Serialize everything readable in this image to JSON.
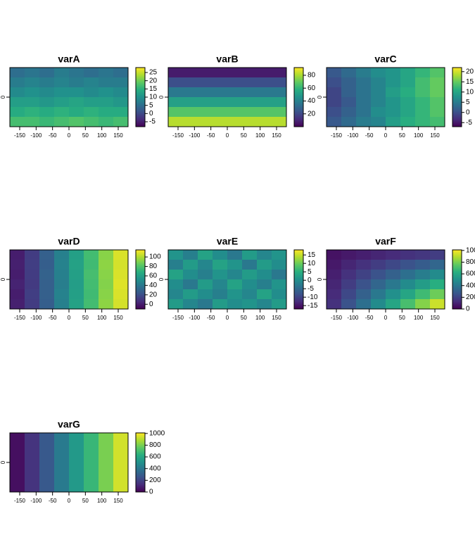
{
  "chart_data": [
    {
      "type": "heatmap",
      "title": "varA",
      "colormap": "viridis",
      "xlim": [
        -180,
        180
      ],
      "ylim": [
        -90,
        90
      ],
      "xticks": [
        -150,
        -100,
        -50,
        0,
        50,
        100,
        150
      ],
      "yticks": [
        0
      ],
      "zlim": [
        -8,
        28
      ],
      "zticks": [
        -5,
        0,
        5,
        10,
        15,
        20,
        25
      ],
      "z": [
        [
          5,
          6,
          5,
          7,
          6,
          5,
          6,
          5
        ],
        [
          7,
          8,
          7,
          8,
          7,
          8,
          7,
          7
        ],
        [
          9,
          10,
          9,
          10,
          10,
          9,
          10,
          9
        ],
        [
          12,
          12,
          11,
          12,
          13,
          12,
          12,
          11
        ],
        [
          14,
          15,
          14,
          15,
          14,
          15,
          14,
          14
        ],
        [
          17,
          17,
          16,
          17,
          18,
          17,
          16,
          17
        ]
      ]
    },
    {
      "type": "heatmap",
      "title": "varB",
      "colormap": "viridis",
      "xlim": [
        -180,
        180
      ],
      "ylim": [
        -90,
        90
      ],
      "xticks": [
        -150,
        -100,
        -50,
        0,
        50,
        100,
        150
      ],
      "yticks": [
        0
      ],
      "zlim": [
        0,
        92
      ],
      "zticks": [
        20,
        40,
        60,
        80
      ],
      "z": [
        [
          7,
          7,
          7,
          7,
          7,
          7,
          7,
          7
        ],
        [
          22,
          22,
          22,
          22,
          22,
          22,
          22,
          22
        ],
        [
          37,
          37,
          37,
          37,
          37,
          37,
          37,
          37
        ],
        [
          52,
          52,
          52,
          52,
          52,
          52,
          52,
          52
        ],
        [
          67,
          67,
          67,
          67,
          67,
          67,
          67,
          67
        ],
        [
          82,
          82,
          82,
          82,
          82,
          82,
          82,
          82
        ]
      ]
    },
    {
      "type": "heatmap",
      "title": "varC",
      "colormap": "viridis",
      "xlim": [
        -180,
        180
      ],
      "ylim": [
        -90,
        90
      ],
      "xticks": [
        -150,
        -100,
        -50,
        0,
        50,
        100,
        150
      ],
      "yticks": [
        0
      ],
      "zlim": [
        -7,
        22
      ],
      "zticks": [
        -5,
        0,
        5,
        10,
        15,
        20
      ],
      "z": [
        [
          1,
          3,
          5,
          7,
          8,
          10,
          12,
          14
        ],
        [
          0,
          2,
          4,
          6,
          8,
          10,
          13,
          15
        ],
        [
          -1,
          2,
          4,
          6,
          9,
          11,
          13,
          15
        ],
        [
          -1,
          1,
          4,
          6,
          8,
          10,
          12,
          14
        ],
        [
          0,
          2,
          4,
          7,
          8,
          10,
          12,
          14
        ],
        [
          1,
          3,
          5,
          6,
          9,
          11,
          12,
          13
        ]
      ]
    },
    {
      "type": "heatmap",
      "title": "varD",
      "colormap": "viridis",
      "xlim": [
        -180,
        180
      ],
      "ylim": [
        -90,
        90
      ],
      "xticks": [
        -150,
        -100,
        -50,
        0,
        50,
        100,
        150
      ],
      "yticks": [
        0
      ],
      "zlim": [
        -10,
        115
      ],
      "zticks": [
        0,
        20,
        40,
        60,
        80,
        100
      ],
      "z": [
        [
          0,
          12,
          28,
          44,
          60,
          76,
          92,
          108
        ],
        [
          1,
          13,
          27,
          45,
          61,
          75,
          93,
          107
        ],
        [
          0,
          12,
          29,
          44,
          60,
          77,
          92,
          108
        ],
        [
          2,
          11,
          28,
          43,
          59,
          76,
          91,
          109
        ],
        [
          0,
          13,
          28,
          45,
          60,
          75,
          92,
          108
        ],
        [
          1,
          12,
          27,
          44,
          61,
          76,
          93,
          107
        ]
      ]
    },
    {
      "type": "heatmap",
      "title": "varE",
      "colormap": "viridis",
      "xlim": [
        -180,
        180
      ],
      "ylim": [
        -90,
        90
      ],
      "xticks": [
        -150,
        -100,
        -50,
        0,
        50,
        100,
        150
      ],
      "yticks": [
        0
      ],
      "zlim": [
        -17,
        18
      ],
      "zticks": [
        -15,
        -10,
        -5,
        0,
        5,
        10,
        15
      ],
      "z": [
        [
          1,
          -2,
          3,
          0,
          -3,
          2,
          -1,
          1
        ],
        [
          -2,
          2,
          -1,
          3,
          1,
          -3,
          2,
          0
        ],
        [
          3,
          0,
          -2,
          1,
          -1,
          2,
          0,
          -3
        ],
        [
          0,
          -3,
          2,
          -1,
          3,
          0,
          -2,
          1
        ],
        [
          -1,
          2,
          0,
          -2,
          1,
          -1,
          3,
          0
        ],
        [
          2,
          -1,
          -3,
          2,
          0,
          1,
          -1,
          2
        ]
      ]
    },
    {
      "type": "heatmap",
      "title": "varF",
      "colormap": "viridis",
      "xlim": [
        -180,
        180
      ],
      "ylim": [
        -90,
        90
      ],
      "xticks": [
        -150,
        -100,
        -50,
        0,
        50,
        100,
        150
      ],
      "yticks": [
        0
      ],
      "zlim": [
        0,
        1010
      ],
      "zticks": [
        0,
        200,
        400,
        600,
        800,
        1000
      ],
      "z": [
        [
          49,
          68,
          86,
          105,
          124,
          143,
          161,
          180
        ],
        [
          68,
          105,
          143,
          180,
          218,
          255,
          293,
          330
        ],
        [
          86,
          143,
          199,
          255,
          311,
          368,
          424,
          480
        ],
        [
          105,
          180,
          255,
          330,
          405,
          480,
          555,
          630
        ],
        [
          124,
          218,
          311,
          405,
          499,
          593,
          686,
          780
        ],
        [
          143,
          255,
          368,
          480,
          593,
          705,
          818,
          930
        ]
      ]
    },
    {
      "type": "heatmap",
      "title": "varG",
      "colormap": "viridis",
      "xlim": [
        -180,
        180
      ],
      "ylim": [
        -90,
        90
      ],
      "xticks": [
        -150,
        -100,
        -50,
        0,
        50,
        100,
        150
      ],
      "yticks": [
        0
      ],
      "zlim": [
        0,
        1010
      ],
      "zticks": [
        0,
        200,
        400,
        600,
        800,
        1000
      ],
      "z": [
        [
          40,
          150,
          280,
          410,
          540,
          670,
          800,
          940
        ],
        [
          40,
          150,
          280,
          410,
          540,
          670,
          800,
          940
        ],
        [
          40,
          150,
          280,
          410,
          540,
          670,
          800,
          940
        ],
        [
          40,
          150,
          280,
          410,
          540,
          670,
          800,
          940
        ],
        [
          40,
          150,
          280,
          410,
          540,
          670,
          800,
          940
        ],
        [
          40,
          150,
          280,
          410,
          540,
          670,
          800,
          940
        ]
      ]
    }
  ]
}
